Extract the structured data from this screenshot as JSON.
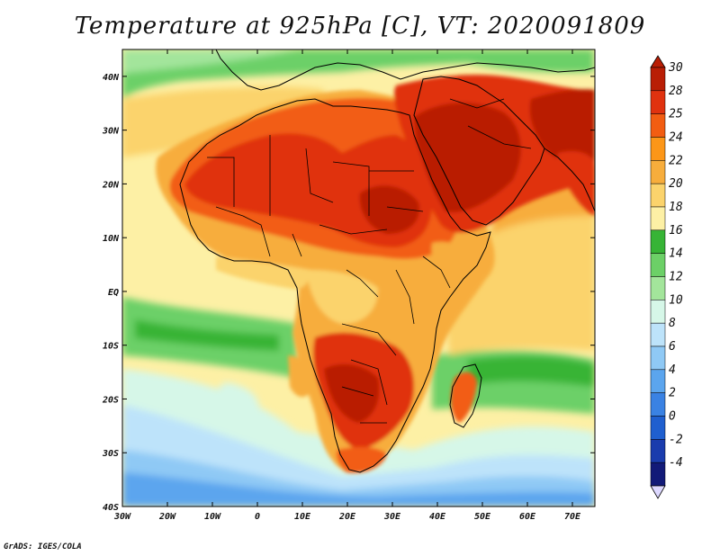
{
  "title": "Temperature at 925hPa [C], VT: 2020091809",
  "credit": "GrADS: IGES/COLA",
  "variable": "Temperature",
  "level": "925hPa",
  "units": "C",
  "valid_time": "2020091809",
  "axes": {
    "lon_labels": [
      "30W",
      "20W",
      "10W",
      "0",
      "10E",
      "20E",
      "30E",
      "40E",
      "50E",
      "60E",
      "70E"
    ],
    "lon_values": [
      -30,
      -20,
      -10,
      0,
      10,
      20,
      30,
      40,
      50,
      60,
      70
    ],
    "lat_labels": [
      "40N",
      "30N",
      "20N",
      "10N",
      "EQ",
      "10S",
      "20S",
      "30S",
      "40S"
    ],
    "lat_values": [
      40,
      30,
      20,
      10,
      0,
      -10,
      -20,
      -30,
      -40
    ],
    "lon_range": [
      -30,
      75
    ],
    "lat_range": [
      -40,
      45
    ]
  },
  "colorbar": {
    "labels": [
      "30",
      "28",
      "25",
      "24",
      "22",
      "20",
      "18",
      "16",
      "14",
      "12",
      "10",
      "8",
      "6",
      "4",
      "2",
      "0",
      "-2",
      "-4"
    ],
    "colors": [
      "#b91e05",
      "#e0320f",
      "#f25d12",
      "#fc9618",
      "#f7ad3c",
      "#fbd36c",
      "#fdf0a5",
      "#37b436",
      "#6cd067",
      "#a3e59b",
      "#d6f7e8",
      "#bde3fa",
      "#8fc9f5",
      "#5ba5ee",
      "#3a82e3",
      "#1f5fcf",
      "#1a3cad",
      "#121a78",
      "#ddd8ff"
    ]
  },
  "regions": {
    "ocean_default": "#fdf0a5"
  }
}
